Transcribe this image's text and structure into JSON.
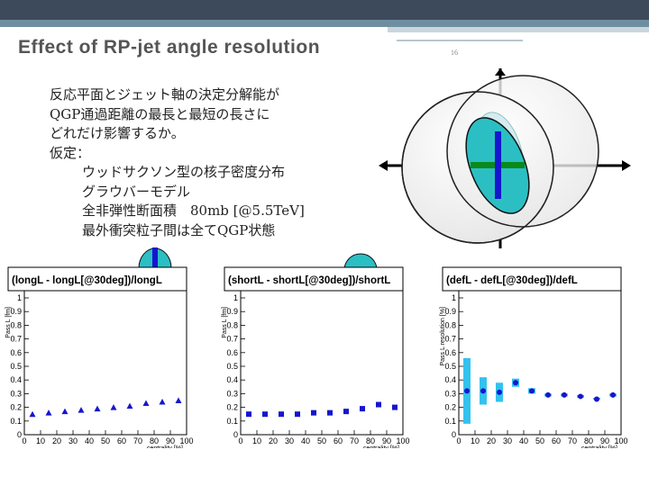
{
  "slide": {
    "title": "Effect of RP-jet angle resolution",
    "page_number": "16"
  },
  "body": {
    "lines": [
      "反応平面とジェット軸の決定分解能が",
      "QGP通過距離の最長と最短の長さに",
      "どれだけ影響するか。",
      "仮定：",
      "ウッドサクソン型の核子密度分布",
      "グラウバーモデル",
      "全非弾性断面積　80mb [@5.5TeV]",
      "最外衝突粒子間は全てQGP状態"
    ]
  },
  "colors": {
    "accent_dark": "#3d4a5c",
    "accent_mid": "#6f8fa1",
    "cyan_fill": "#2bbfc4",
    "marker_blue": "#1515d0",
    "jet_green": "#0a8a1a"
  },
  "chart_data": [
    {
      "type": "scatter",
      "title": "(longL - longL[@30deg])/longL",
      "xlabel": "centrality [%]",
      "ylabel": "Pass L [fm]",
      "xlim": [
        0,
        100
      ],
      "ylim": [
        0,
        1
      ],
      "xticks": [
        "0",
        "10",
        "20",
        "30",
        "40",
        "50",
        "60",
        "70",
        "80",
        "90",
        "100"
      ],
      "yticks": [
        "0",
        "0.1",
        "0.2",
        "0.3",
        "0.4",
        "0.5",
        "0.6",
        "0.7",
        "0.8",
        "0.9",
        "1"
      ],
      "marker": "triangle",
      "x": [
        5,
        15,
        25,
        35,
        45,
        55,
        65,
        75,
        85,
        95
      ],
      "y": [
        0.15,
        0.16,
        0.17,
        0.18,
        0.19,
        0.2,
        0.21,
        0.23,
        0.24,
        0.25
      ]
    },
    {
      "type": "scatter",
      "title": "(shortL - shortL[@30deg])/shortL",
      "xlabel": "centrality [%]",
      "ylabel": "Pass L [fm]",
      "xlim": [
        0,
        100
      ],
      "ylim": [
        0,
        1
      ],
      "xticks": [
        "0",
        "10",
        "20",
        "30",
        "40",
        "50",
        "60",
        "70",
        "80",
        "90",
        "100"
      ],
      "yticks": [
        "0",
        "0.1",
        "0.2",
        "0.3",
        "0.4",
        "0.5",
        "0.6",
        "0.7",
        "0.8",
        "0.9",
        "1"
      ],
      "marker": "square",
      "x": [
        5,
        15,
        25,
        35,
        45,
        55,
        65,
        75,
        85,
        95
      ],
      "y": [
        0.15,
        0.15,
        0.15,
        0.15,
        0.16,
        0.16,
        0.17,
        0.19,
        0.22,
        0.2
      ]
    },
    {
      "type": "scatter",
      "title": "(defL - defL[@30deg])/defL",
      "xlabel": "centrality [%]",
      "ylabel": "Pass L resolution [%]",
      "xlim": [
        0,
        100
      ],
      "ylim": [
        0,
        1
      ],
      "xticks": [
        "0",
        "10",
        "20",
        "30",
        "40",
        "50",
        "60",
        "70",
        "80",
        "90",
        "100"
      ],
      "yticks": [
        "0",
        "0.1",
        "0.2",
        "0.3",
        "0.4",
        "0.5",
        "0.6",
        "0.7",
        "0.8",
        "0.9",
        "1"
      ],
      "marker": "circle",
      "x": [
        5,
        15,
        25,
        35,
        45,
        55,
        65,
        75,
        85,
        95
      ],
      "y": [
        0.32,
        0.32,
        0.31,
        0.38,
        0.32,
        0.29,
        0.29,
        0.28,
        0.26,
        0.29
      ],
      "band_lo": [
        0.08,
        0.22,
        0.24,
        0.35,
        0.3,
        0.28,
        0.28,
        0.27,
        0.26,
        0.28
      ],
      "band_hi": [
        0.56,
        0.42,
        0.38,
        0.41,
        0.34,
        0.3,
        0.3,
        0.29,
        0.27,
        0.3
      ]
    }
  ]
}
